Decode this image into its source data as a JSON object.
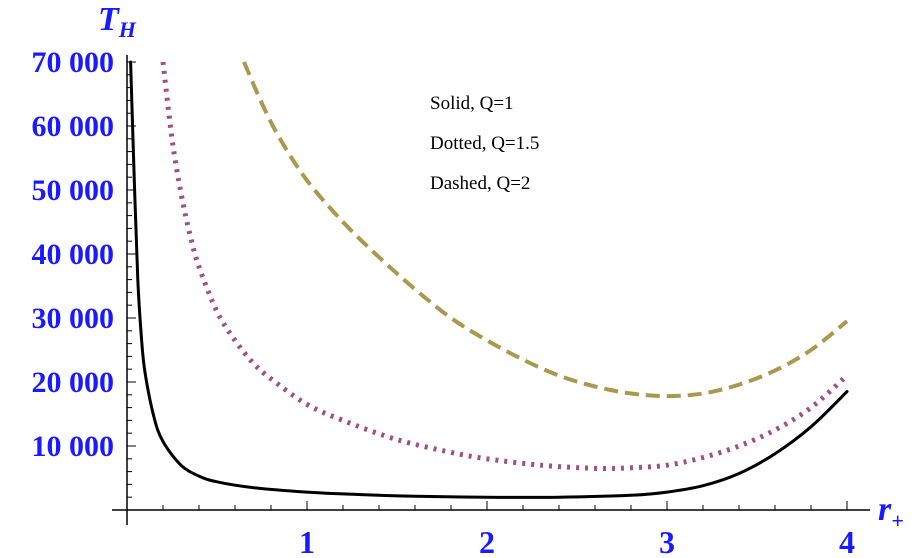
{
  "chart_data": {
    "type": "line",
    "ylabel": "T",
    "ylabel_sub": "H",
    "xlabel": "r",
    "xlabel_sub": "+",
    "xlim": [
      0,
      4
    ],
    "ylim": [
      0,
      70000
    ],
    "x_ticks": [
      1,
      2,
      3,
      4
    ],
    "y_ticks": [
      10000,
      20000,
      30000,
      40000,
      50000,
      60000,
      70000
    ],
    "y_tick_labels": [
      "10 000",
      "20 000",
      "30 000",
      "40 000",
      "50 000",
      "60 000",
      "70 000"
    ],
    "annotations": [
      "Solid, Q=1",
      "Dotted, Q=1.5",
      "Dashed, Q=2"
    ],
    "series": [
      {
        "style": "solid",
        "color": "#000000",
        "x": [
          0.02,
          0.04,
          0.06,
          0.08,
          0.1,
          0.15,
          0.2,
          0.3,
          0.4,
          0.5,
          0.7,
          1.0,
          1.3,
          1.6,
          2.0,
          2.4,
          2.8,
          3.0,
          3.2,
          3.4,
          3.6,
          3.8,
          4.0
        ],
        "values": [
          70000,
          52000,
          36000,
          27000,
          21500,
          14500,
          10700,
          7000,
          5300,
          4400,
          3500,
          2800,
          2400,
          2150,
          2000,
          2000,
          2300,
          2800,
          3800,
          5700,
          8800,
          13000,
          18500
        ]
      },
      {
        "style": "dotted",
        "color": "#a05080",
        "x": [
          0.2,
          0.25,
          0.3,
          0.35,
          0.4,
          0.5,
          0.6,
          0.7,
          0.8,
          1.0,
          1.2,
          1.5,
          1.8,
          2.0,
          2.3,
          2.6,
          2.8,
          3.0,
          3.2,
          3.4,
          3.6,
          3.8,
          4.0
        ],
        "values": [
          70000,
          58000,
          49500,
          43000,
          38000,
          31000,
          26500,
          23000,
          20500,
          16500,
          14000,
          11000,
          9000,
          8000,
          7000,
          6500,
          6600,
          7000,
          8200,
          10000,
          12500,
          16000,
          21000
        ]
      },
      {
        "style": "dashed",
        "color": "#a89850",
        "x": [
          0.65,
          0.75,
          0.85,
          1.0,
          1.2,
          1.4,
          1.6,
          1.8,
          2.0,
          2.2,
          2.4,
          2.6,
          2.8,
          3.0,
          3.2,
          3.4,
          3.6,
          3.8,
          4.0
        ],
        "values": [
          70000,
          63500,
          58000,
          51500,
          45000,
          39500,
          34500,
          30000,
          26500,
          23500,
          21000,
          19300,
          18200,
          17800,
          18200,
          19600,
          21800,
          25000,
          29500
        ]
      }
    ]
  }
}
